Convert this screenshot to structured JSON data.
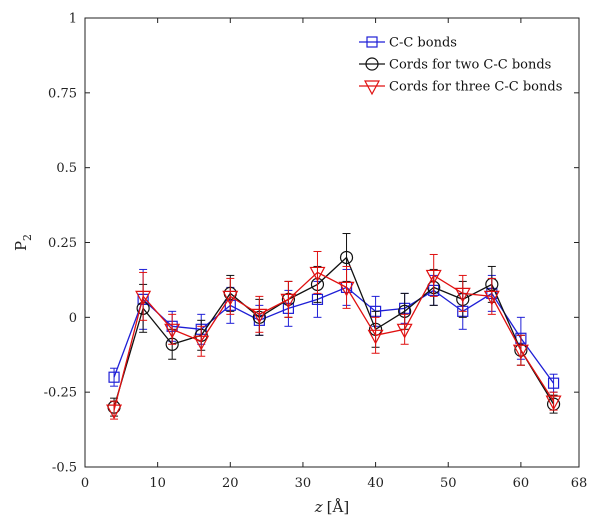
{
  "chart_data": {
    "type": "line",
    "title": "",
    "xlabel": {
      "italic": "z",
      "unit": "[Å]"
    },
    "ylabel": {
      "main": "P",
      "sub": "2"
    },
    "xlim": [
      0,
      68
    ],
    "ylim": [
      -0.5,
      1
    ],
    "xticks": [
      0,
      10,
      20,
      30,
      40,
      50,
      60,
      68
    ],
    "xtick_labels": [
      "0",
      "10",
      "20",
      "30",
      "40",
      "50",
      "60",
      "68"
    ],
    "yticks": [
      -0.5,
      -0.25,
      0,
      0.25,
      0.5,
      0.75,
      1
    ],
    "ytick_labels": [
      "-0.5",
      "-0.25",
      "0",
      "0.25",
      "0.5",
      "0.75",
      "1"
    ],
    "grid": false,
    "legend_position": "top-right",
    "series": [
      {
        "name": "C-C bonds",
        "color": "#1f1fd6",
        "marker": "square",
        "x": [
          4,
          8,
          12,
          16,
          20,
          24,
          28,
          32,
          36,
          40,
          44,
          48,
          52,
          56,
          60,
          64.5
        ],
        "y": [
          -0.2,
          0.06,
          -0.03,
          -0.04,
          0.04,
          -0.01,
          0.03,
          0.06,
          0.1,
          0.02,
          0.03,
          0.09,
          0.02,
          0.08,
          -0.07,
          -0.22
        ],
        "err": [
          0.03,
          0.1,
          0.05,
          0.05,
          0.06,
          0.05,
          0.06,
          0.06,
          0.06,
          0.05,
          0.05,
          0.05,
          0.06,
          0.06,
          0.07,
          0.03
        ]
      },
      {
        "name": "Cords for two C-C bonds",
        "color": "#111111",
        "marker": "circle",
        "x": [
          4,
          8,
          12,
          16,
          20,
          24,
          28,
          32,
          36,
          40,
          44,
          48,
          52,
          56,
          60,
          64.5
        ],
        "y": [
          -0.3,
          0.03,
          -0.09,
          -0.06,
          0.08,
          0.0,
          0.06,
          0.11,
          0.2,
          -0.04,
          0.02,
          0.1,
          0.06,
          0.11,
          -0.11,
          -0.29
        ],
        "err": [
          0.03,
          0.08,
          0.05,
          0.05,
          0.06,
          0.06,
          0.06,
          0.06,
          0.08,
          0.06,
          0.06,
          0.06,
          0.06,
          0.06,
          0.05,
          0.03
        ]
      },
      {
        "name": "Cords for three C-C bonds",
        "color": "#e01010",
        "marker": "triangle-down",
        "x": [
          4,
          8,
          12,
          16,
          20,
          24,
          28,
          32,
          36,
          40,
          44,
          48,
          52,
          56,
          60,
          64.5
        ],
        "y": [
          -0.31,
          0.07,
          -0.04,
          -0.08,
          0.07,
          0.01,
          0.06,
          0.15,
          0.1,
          -0.06,
          -0.04,
          0.14,
          0.08,
          0.07,
          -0.11,
          -0.28
        ],
        "err": [
          0.03,
          0.08,
          0.05,
          0.05,
          0.06,
          0.06,
          0.06,
          0.07,
          0.07,
          0.06,
          0.05,
          0.07,
          0.06,
          0.06,
          0.05,
          0.03
        ]
      }
    ]
  }
}
